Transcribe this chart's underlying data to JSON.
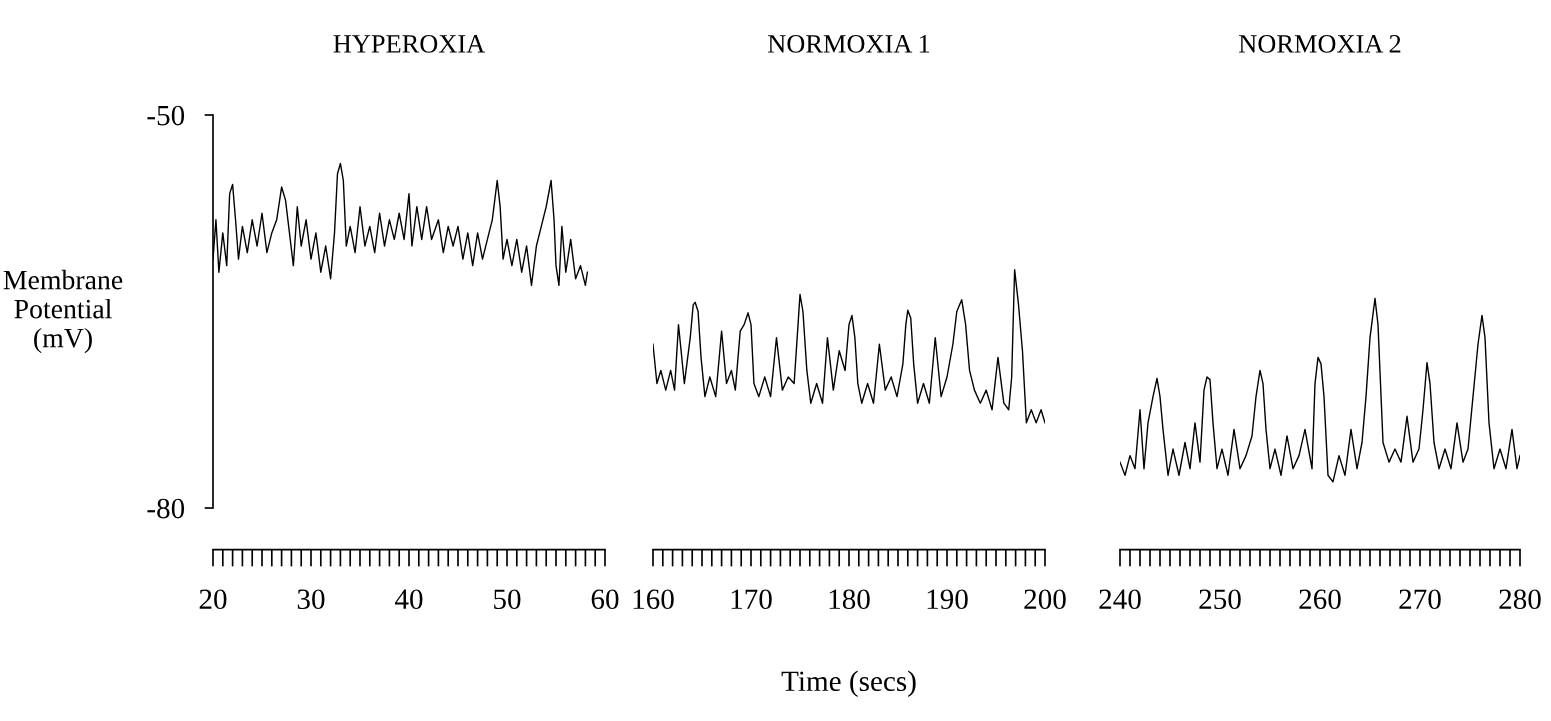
{
  "chart_data": [
    {
      "type": "line",
      "title": "HYPEROXIA",
      "ylabel": "Membrane\nPotential\n(mV)",
      "xlim": [
        20,
        60
      ],
      "xticks": [
        20,
        30,
        40,
        50,
        60
      ],
      "ylim": [
        -80,
        -50
      ],
      "yticks": [
        -50,
        -80
      ],
      "series": [
        {
          "color": "#000000",
          "x": [
            20,
            20.3,
            20.6,
            21,
            21.4,
            21.7,
            22,
            22.3,
            22.6,
            23,
            23.5,
            24,
            24.5,
            25,
            25.5,
            26,
            26.5,
            27,
            27.4,
            27.8,
            28.2,
            28.6,
            29,
            29.5,
            30,
            30.5,
            31,
            31.5,
            32,
            32.4,
            32.7,
            33,
            33.3,
            33.6,
            34,
            34.5,
            35,
            35.5,
            36,
            36.5,
            37,
            37.5,
            38,
            38.5,
            39,
            39.5,
            40,
            40.3,
            40.8,
            41.3,
            41.8,
            42.3,
            43,
            43.5,
            44,
            44.5,
            45,
            45.5,
            46,
            46.5,
            47,
            47.5,
            48,
            48.5,
            49,
            49.3,
            49.6,
            50,
            50.5,
            51,
            51.5,
            52,
            52.5,
            53,
            53.5,
            54,
            54.5,
            54.8,
            55,
            55.3,
            55.6,
            56,
            56.5,
            57,
            57.5,
            58,
            58.2
          ],
          "values": [
            -61,
            -58,
            -62,
            -59,
            -61.5,
            -56,
            -55.3,
            -58,
            -61,
            -58.5,
            -60.5,
            -58,
            -60,
            -57.5,
            -60.5,
            -59,
            -58,
            -55.5,
            -56.5,
            -59,
            -61.5,
            -57,
            -60,
            -58,
            -61,
            -59,
            -62,
            -60,
            -62.5,
            -59,
            -54.5,
            -53.7,
            -55,
            -60,
            -58.5,
            -60.5,
            -57,
            -60,
            -58.5,
            -60.5,
            -57.5,
            -60,
            -58,
            -59.5,
            -57.5,
            -59.5,
            -56,
            -60,
            -57,
            -59.5,
            -57,
            -59.5,
            -58,
            -60.5,
            -58.5,
            -60,
            -58.5,
            -61,
            -59,
            -61.5,
            -59,
            -61,
            -59.5,
            -58,
            -55,
            -57,
            -61,
            -59.5,
            -61.5,
            -59.5,
            -62,
            -60,
            -63,
            -60,
            -58.5,
            -57,
            -55,
            -58,
            -61.5,
            -63,
            -58.5,
            -62,
            -59.5,
            -62.5,
            -61.5,
            -63,
            -62
          ]
        }
      ]
    },
    {
      "type": "line",
      "title": "NORMOXIA 1",
      "xlabel": "Time (secs)",
      "xlim": [
        160,
        200
      ],
      "xticks": [
        160,
        170,
        180,
        190,
        200
      ],
      "ylim": [
        -80,
        -50
      ],
      "tick_labels": "x",
      "series": [
        {
          "color": "#000000",
          "x": [
            160,
            160.4,
            160.8,
            161.3,
            161.8,
            162.2,
            162.6,
            163.2,
            163.8,
            164.1,
            164.3,
            164.6,
            164.9,
            165.3,
            165.8,
            166.4,
            167,
            167.5,
            168,
            168.4,
            168.9,
            169.3,
            169.7,
            170,
            170.3,
            170.8,
            171.4,
            172,
            172.6,
            173.2,
            173.8,
            174.4,
            174.8,
            175,
            175.3,
            175.7,
            176.1,
            176.7,
            177.3,
            177.8,
            178.4,
            179,
            179.6,
            180,
            180.3,
            180.6,
            180.9,
            181.3,
            181.9,
            182.5,
            183.1,
            183.7,
            184.3,
            184.9,
            185.5,
            185.8,
            186,
            186.3,
            186.6,
            187,
            187.6,
            188.2,
            188.8,
            189.4,
            190,
            190.6,
            191,
            191.5,
            191.9,
            192.3,
            192.8,
            193.4,
            194,
            194.6,
            195.2,
            195.8,
            196.3,
            196.6,
            196.9,
            197.3,
            197.7,
            198.1,
            198.6,
            199.1,
            199.6,
            200
          ],
          "values": [
            -67.5,
            -70.5,
            -69.5,
            -71,
            -69.5,
            -71,
            -66,
            -70.5,
            -67,
            -64.5,
            -64.3,
            -65,
            -68.5,
            -71.5,
            -70,
            -71.5,
            -66.5,
            -70.5,
            -69.5,
            -71,
            -66.5,
            -66,
            -65.1,
            -66,
            -70.5,
            -71.5,
            -70,
            -71.5,
            -67,
            -71,
            -70,
            -70.5,
            -66,
            -63.7,
            -65,
            -69.5,
            -72,
            -70.5,
            -72,
            -67,
            -71,
            -68,
            -69.5,
            -66,
            -65.3,
            -67,
            -70.5,
            -72,
            -70.5,
            -72,
            -67.5,
            -71,
            -70,
            -71.5,
            -69,
            -66,
            -64.9,
            -65.5,
            -69,
            -72,
            -70.5,
            -72,
            -67,
            -71.5,
            -70,
            -67.5,
            -65,
            -64.1,
            -66,
            -69.5,
            -71,
            -72,
            -71,
            -72.5,
            -68.5,
            -72,
            -72.5,
            -70,
            -61.8,
            -64.5,
            -68,
            -73.5,
            -72.5,
            -73.5,
            -72.5,
            -73.5
          ]
        }
      ]
    },
    {
      "type": "line",
      "title": "NORMOXIA 2",
      "xlim": [
        240,
        280
      ],
      "xticks": [
        240,
        250,
        260,
        270,
        280
      ],
      "ylim": [
        -80,
        -50
      ],
      "tick_labels": "x",
      "series": [
        {
          "color": "#000000",
          "x": [
            240,
            240.5,
            241,
            241.5,
            242,
            242.4,
            242.8,
            243.3,
            243.7,
            244,
            244.3,
            244.8,
            245.3,
            245.9,
            246.5,
            247,
            247.5,
            248,
            248.4,
            248.7,
            249,
            249.3,
            249.7,
            250.2,
            250.8,
            251.4,
            252,
            252.6,
            253.2,
            253.6,
            254,
            254.3,
            254.6,
            255,
            255.5,
            256.1,
            256.7,
            257.3,
            257.9,
            258.5,
            259.2,
            259.5,
            259.8,
            260.1,
            260.4,
            260.8,
            261.3,
            261.9,
            262.5,
            263.1,
            263.7,
            264.2,
            264.6,
            265,
            265.5,
            265.8,
            266.3,
            266.9,
            267.5,
            268.1,
            268.7,
            269.3,
            269.9,
            270.3,
            270.7,
            271,
            271.4,
            271.9,
            272.5,
            273.1,
            273.7,
            274.3,
            274.8,
            275.3,
            275.8,
            276.2,
            276.5,
            276.9,
            277.4,
            278,
            278.6,
            279.2,
            279.7,
            280
          ],
          "values": [
            -76.5,
            -77.5,
            -76,
            -77,
            -72.5,
            -77,
            -73.5,
            -71.5,
            -70.1,
            -71.5,
            -74,
            -77.5,
            -75.5,
            -77.5,
            -75,
            -77,
            -73.5,
            -76.5,
            -71,
            -70,
            -70.2,
            -73.5,
            -77,
            -75.5,
            -77.5,
            -74,
            -77,
            -76,
            -74.5,
            -71.5,
            -69.5,
            -70.5,
            -74,
            -77,
            -75.5,
            -77.5,
            -74.5,
            -77,
            -76,
            -74,
            -77,
            -70.5,
            -68.5,
            -69,
            -71.5,
            -77.5,
            -78,
            -76,
            -77.5,
            -74,
            -77,
            -75,
            -71.5,
            -67,
            -64,
            -66,
            -75,
            -76.5,
            -75.5,
            -76.5,
            -73,
            -76.5,
            -75.5,
            -72.5,
            -68.9,
            -70.5,
            -75,
            -77,
            -75.5,
            -77,
            -73.5,
            -76.5,
            -75.5,
            -71.5,
            -67.5,
            -65.3,
            -67,
            -73.5,
            -77,
            -75.5,
            -77,
            -74,
            -77,
            -76
          ]
        }
      ]
    }
  ]
}
